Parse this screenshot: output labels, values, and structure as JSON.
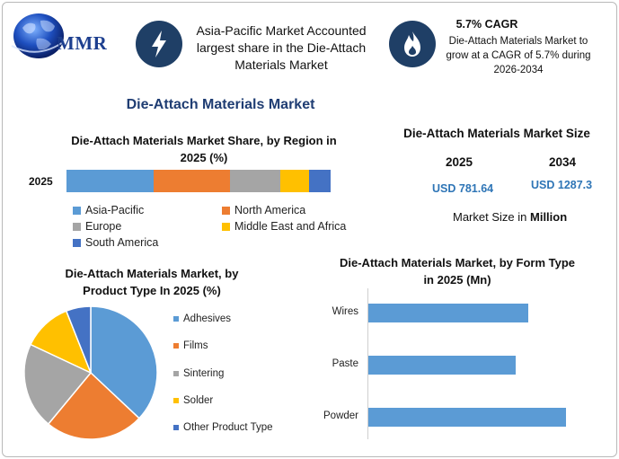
{
  "header": {
    "logo_text": "MMR",
    "insight_1": "Asia-Pacific Market Accounted largest share in the Die-Attach Materials Market",
    "insight_2_title": "5.7% CAGR",
    "insight_2_text": "Die-Attach Materials Market to grow at a CAGR of 5.7% during 2026-2034",
    "icon_1": "lightning-bolt-icon",
    "icon_2": "flame-icon"
  },
  "main_title": "Die-Attach Materials Market",
  "market_size": {
    "title": "Die-Attach Materials Market Size",
    "year_1": "2025",
    "year_2": "2034",
    "value_1": "USD 781.64",
    "value_2": "USD 1287.3",
    "unit_prefix": "Market Size in",
    "unit": "Million"
  },
  "colors": {
    "blue": "#5b9bd5",
    "orange": "#ed7d31",
    "gray": "#a5a5a5",
    "yellow": "#ffc000",
    "dark_blue": "#4472c4",
    "accent": "#1f3f66"
  },
  "chart_data": [
    {
      "type": "bar",
      "orientation": "horizontal-stacked",
      "title": "Die-Attach Materials Market Share, by Region in 2025 (%)",
      "categories": [
        "2025"
      ],
      "series": [
        {
          "name": "Asia-Pacific",
          "values": [
            33
          ]
        },
        {
          "name": "North America",
          "values": [
            29
          ]
        },
        {
          "name": "Europe",
          "values": [
            19
          ]
        },
        {
          "name": "Middle East and Africa",
          "values": [
            11
          ]
        },
        {
          "name": "South America",
          "values": [
            8
          ]
        }
      ],
      "legend_placement": "bottom"
    },
    {
      "type": "pie",
      "title": "Die-Attach Materials Market, by Product Type In 2025 (%)",
      "labels": [
        "Adhesives",
        "Films",
        "Sintering",
        "Solder",
        "Other Product Type"
      ],
      "values": [
        37,
        24,
        21,
        12,
        6
      ],
      "legend_placement": "right"
    },
    {
      "type": "bar",
      "orientation": "horizontal",
      "title": "Die-Attach Materials Market, by Form Type in 2025 (Mn)",
      "categories": [
        "Wires",
        "Paste",
        "Powder"
      ],
      "values": [
        180,
        165,
        222
      ],
      "xlim": [
        0,
        230
      ],
      "grid": false
    }
  ]
}
